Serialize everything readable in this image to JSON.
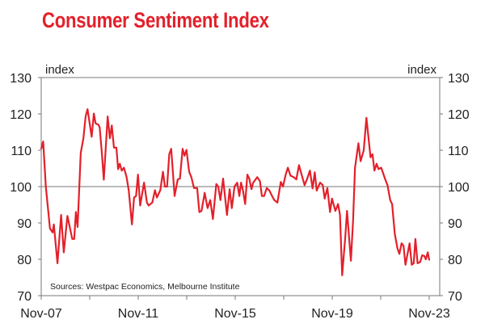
{
  "chart_data": {
    "type": "line",
    "title": "Consumer Sentiment Index",
    "ylabel_left": "index",
    "ylabel_right": "index",
    "source": "Sources: Westpac Economics, Melbourne Institute",
    "ylim": [
      70,
      130
    ],
    "yticks": [
      70,
      80,
      90,
      100,
      110,
      120,
      130
    ],
    "xlim": [
      2007.83,
      2023.83
    ],
    "xtick_labels": [
      "Nov-07",
      "Nov-11",
      "Nov-15",
      "Nov-19",
      "Nov-23"
    ],
    "xtick_values": [
      2007.83,
      2011.83,
      2015.83,
      2019.83,
      2023.83
    ],
    "minor_xtick_values": [
      2009.83,
      2013.83,
      2017.83,
      2021.83
    ],
    "reference_line": 100,
    "grid": false,
    "line_color": "#e3202a",
    "series": [
      {
        "x": [
          2007.83,
          2007.91,
          2008.02,
          2008.19,
          2008.3,
          2008.35,
          2008.5,
          2008.65,
          2008.76,
          2008.91,
          2009.11,
          2009.19,
          2009.26,
          2009.33,
          2009.46,
          2009.57,
          2009.66,
          2009.74,
          2009.91,
          2010.0,
          2010.07,
          2010.19,
          2010.24,
          2010.33,
          2010.41,
          2010.57,
          2010.66,
          2010.74,
          2010.83,
          2010.93,
          2011.0,
          2011.07,
          2011.15,
          2011.24,
          2011.35,
          2011.44,
          2011.57,
          2011.66,
          2011.74,
          2011.82,
          2011.91,
          2012.07,
          2012.19,
          2012.26,
          2012.41,
          2012.52,
          2012.6,
          2012.74,
          2012.85,
          2012.93,
          2013.02,
          2013.11,
          2013.19,
          2013.33,
          2013.46,
          2013.55,
          2013.66,
          2013.74,
          2013.82,
          2013.93,
          2014.02,
          2014.13,
          2014.26,
          2014.35,
          2014.44,
          2014.57,
          2014.69,
          2014.8,
          2014.91,
          2015.05,
          2015.13,
          2015.22,
          2015.33,
          2015.49,
          2015.6,
          2015.69,
          2015.8,
          2015.91,
          2016.0,
          2016.07,
          2016.15,
          2016.24,
          2016.33,
          2016.41,
          2016.5,
          2016.57,
          2016.74,
          2016.85,
          2016.93,
          2017.02,
          2017.13,
          2017.24,
          2017.35,
          2017.44,
          2017.57,
          2017.71,
          2017.8,
          2017.91,
          2018.0,
          2018.11,
          2018.24,
          2018.35,
          2018.46,
          2018.55,
          2018.69,
          2018.8,
          2018.91,
          2019.02,
          2019.11,
          2019.19,
          2019.33,
          2019.44,
          2019.52,
          2019.63,
          2019.74,
          2019.82,
          2019.96,
          2020.07,
          2020.15,
          2020.24,
          2020.37,
          2020.44,
          2020.6,
          2020.69,
          2020.77,
          2020.91,
          2021.0,
          2021.13,
          2021.24,
          2021.41,
          2021.49,
          2021.57,
          2021.66,
          2021.74,
          2021.85,
          2022.02,
          2022.11,
          2022.22,
          2022.3,
          2022.41,
          2022.52,
          2022.6,
          2022.69,
          2022.77,
          2022.85,
          2023.02,
          2023.11,
          2023.19,
          2023.26,
          2023.35,
          2023.46,
          2023.54,
          2023.63,
          2023.69,
          2023.77,
          2023.83
        ],
        "y": [
          110.4,
          112.4,
          100,
          88.5,
          87.4,
          89.6,
          78.9,
          92.2,
          81.9,
          91.9,
          85.6,
          85.6,
          93,
          88.9,
          109.3,
          113.3,
          119.3,
          121.3,
          113.7,
          120.1,
          117.4,
          117,
          116.3,
          109.3,
          101.9,
          119.3,
          113.3,
          116.8,
          110.7,
          110.7,
          104.8,
          106.3,
          104.4,
          105.2,
          102.6,
          98.9,
          89.6,
          97,
          97.4,
          103.3,
          94.8,
          101.1,
          95.6,
          94.8,
          95.6,
          99,
          97,
          99,
          104.1,
          100,
          100,
          108.9,
          110.4,
          97.4,
          102,
          102.2,
          110.4,
          108.5,
          110.1,
          104.1,
          102.6,
          99.6,
          99.6,
          93,
          93.3,
          98.3,
          94.1,
          96.3,
          91.1,
          100.7,
          100,
          96.3,
          102.2,
          92.2,
          99.3,
          94.1,
          100,
          101.1,
          97.4,
          101.1,
          98.9,
          95.2,
          103.3,
          102.2,
          99.3,
          101.1,
          102.6,
          101.5,
          97.4,
          97.4,
          99.6,
          98.9,
          97.4,
          96.3,
          95.6,
          101.3,
          100,
          103.3,
          105.2,
          103,
          102.6,
          102,
          105.9,
          103.7,
          100.4,
          102.2,
          104.4,
          99.5,
          103.9,
          98.9,
          101.1,
          100.4,
          96.7,
          99.6,
          93,
          96.7,
          93.3,
          95.2,
          92.2,
          75.6,
          86.3,
          93.3,
          79.6,
          90.7,
          105.2,
          111.9,
          107,
          110,
          118.9,
          108.1,
          108.9,
          104.4,
          106.3,
          104.8,
          105.2,
          101.9,
          100.4,
          96.3,
          95.2,
          87,
          83,
          81.5,
          84.4,
          83.7,
          78.5,
          84.4,
          78.5,
          78.9,
          85.6,
          78.9,
          79.3,
          81.1,
          80.9,
          80,
          81.9,
          79.8
        ]
      }
    ]
  }
}
